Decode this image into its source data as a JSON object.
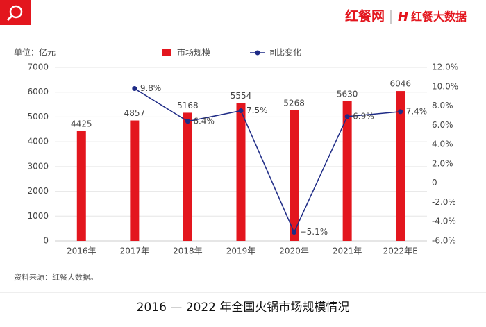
{
  "header": {
    "brand": "红餐网",
    "sub_brand": "红餐大数据"
  },
  "source": "资料来源：红餐大数据。",
  "chart_data": {
    "type": "bar",
    "title": "2016 — 2022 年全国火锅市场规模情况",
    "y_label": "单位：亿元",
    "categories": [
      "2016年",
      "2017年",
      "2018年",
      "2019年",
      "2020年",
      "2021年",
      "2022年E"
    ],
    "series": [
      {
        "name": "市场规模",
        "type": "bar",
        "color": "#e3161e",
        "values": [
          4425,
          4857,
          5168,
          5554,
          5268,
          5630,
          6046
        ]
      },
      {
        "name": "同比变化",
        "type": "line",
        "color": "#1e2b86",
        "axis": "y2",
        "values": [
          null,
          9.8,
          6.4,
          7.5,
          -5.1,
          6.9,
          7.4
        ],
        "value_labels": [
          null,
          "9.8%",
          "6.4%",
          "7.5%",
          "−5.1%",
          "6.9%",
          "7.4%"
        ]
      }
    ],
    "ylim": [
      0,
      7000
    ],
    "yticks": [
      0,
      1000,
      2000,
      3000,
      4000,
      5000,
      6000,
      7000
    ],
    "y2lim": [
      -6,
      12
    ],
    "y2ticks": [
      {
        "value": -6,
        "label": "-6.0%"
      },
      {
        "value": -4,
        "label": "-4.0%"
      },
      {
        "value": -2,
        "label": "-2.0%"
      },
      0,
      {
        "value": 2,
        "label": "2.0%"
      },
      {
        "value": 4,
        "label": "4.0%"
      },
      {
        "value": 6,
        "label": "6.0%"
      },
      {
        "value": 8,
        "label": "8.0%"
      },
      {
        "value": 10,
        "label": "10.0%"
      },
      {
        "value": 12,
        "label": "12.0%"
      }
    ],
    "grid": true
  }
}
